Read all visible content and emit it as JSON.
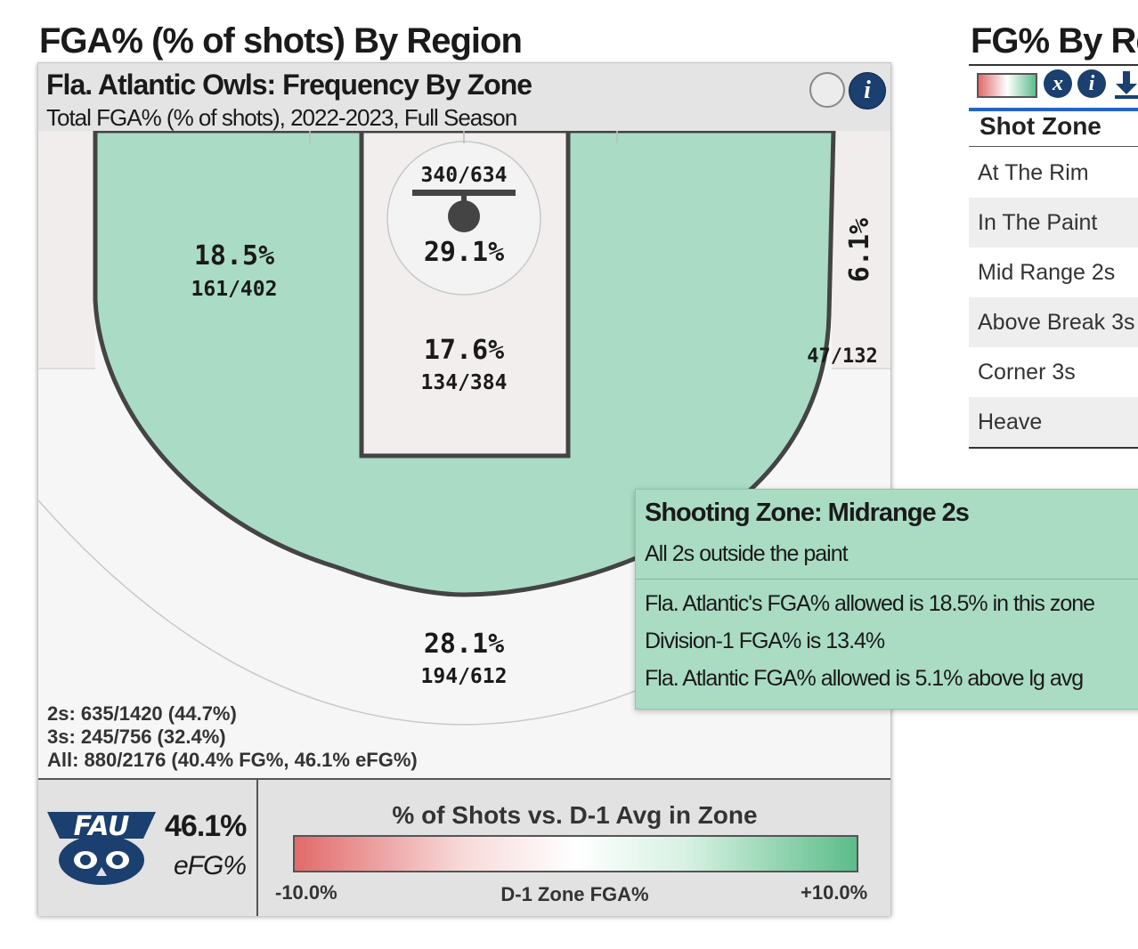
{
  "page": {
    "left_title": "FGA% (% of shots) By Region",
    "right_title": "FG% By Re"
  },
  "card": {
    "title": "Fla. Atlantic Owls: Frequency By Zone",
    "subtitle": "Total FGA% (% of shots), 2022-2023, Full Season",
    "info_label": "i"
  },
  "zones": {
    "at_rim": {
      "pct": "29.1%",
      "ratio": "340/634"
    },
    "paint": {
      "pct": "17.6%",
      "ratio": "134/384"
    },
    "midrange_left": {
      "pct": "18.5%",
      "ratio": "161/402"
    },
    "corner_right": {
      "pct": "6.1%",
      "ratio": "47/132"
    },
    "above_break": {
      "pct": "28.1%",
      "ratio": "194/612"
    }
  },
  "summary": {
    "twos": "2s: 635/1420 (44.7%)",
    "threes": "3s: 245/756 (32.4%)",
    "all": "All: 880/2176 (40.4% FG%, 46.1% eFG%)"
  },
  "footer": {
    "efg_value": "46.1%",
    "efg_label": "eFG%",
    "logo_text": "FAU",
    "legend_title": "% of Shots vs. D-1 Avg in Zone",
    "legend_min": "-10.0%",
    "legend_mid": "D-1 Zone FGA%",
    "legend_max": "+10.0%"
  },
  "tooltip": {
    "title": "Shooting Zone: Midrange 2s",
    "subtitle": "All 2s outside the paint",
    "lines": [
      "Fla. Atlantic's FGA% allowed is 18.5% in this zone",
      "Division-1 FGA% is 13.4%",
      "Fla. Atlantic FGA% allowed is 5.1% above lg avg"
    ]
  },
  "right_table": {
    "x_label": "x",
    "info_label": "i",
    "header": "Shot Zone",
    "rows": [
      "At The Rim",
      "In The Paint",
      "Mid Range 2s",
      "Above Break 3s",
      "Corner 3s",
      "Heave"
    ]
  },
  "colors": {
    "zone_above_avg": "#aadcc5",
    "paint_fill": "#f3eeee",
    "court_line": "#444444",
    "info_button": "#1b3f6e",
    "table_accent": "#2563c7",
    "legend_low": "#e26a6a",
    "legend_high": "#5cbc8a"
  }
}
